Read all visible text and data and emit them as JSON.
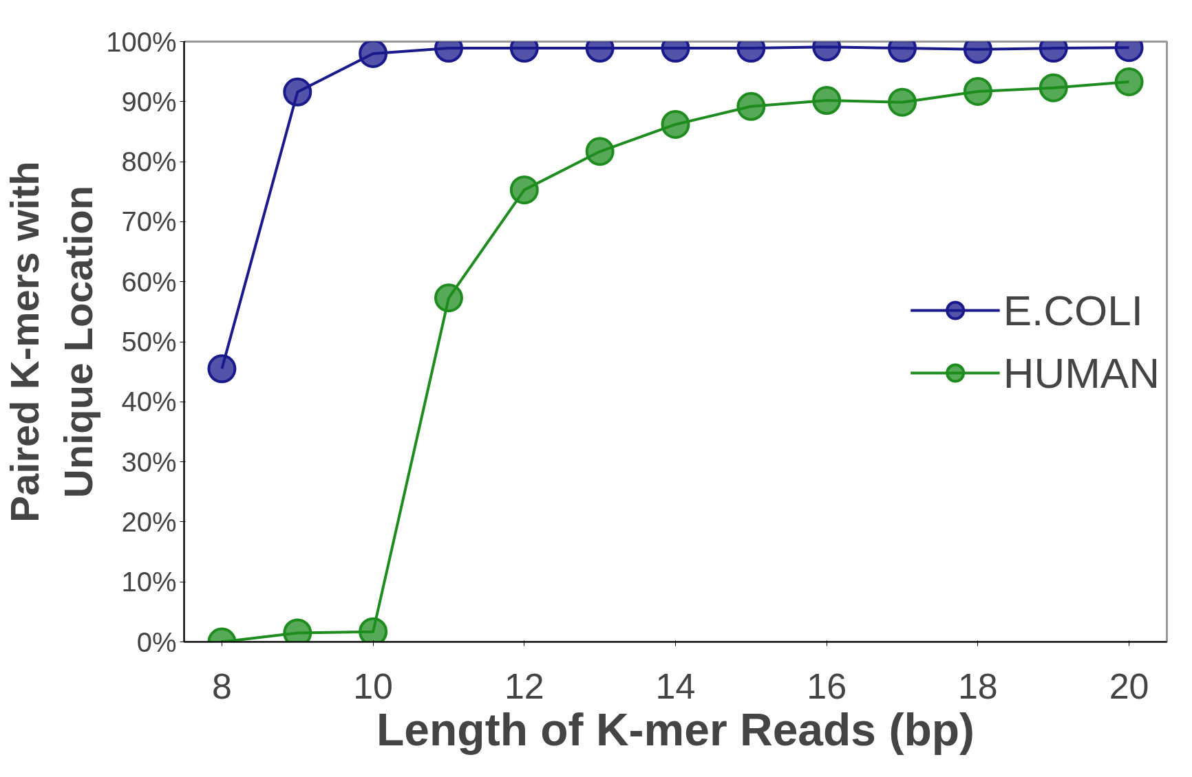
{
  "chart_data": {
    "type": "line",
    "xlabel": "Length of K-mer Reads (bp)",
    "ylabel": "Paired K-mers with\nUnique Location",
    "categories": [
      "8",
      null,
      "10",
      null,
      "12",
      null,
      "14",
      null,
      "16",
      null,
      "18",
      null,
      "20"
    ],
    "series": [
      {
        "name": "E.COLI",
        "color": "#1a1a8c",
        "values": [
          45.5,
          91.6,
          98.0,
          98.9,
          98.9,
          98.9,
          98.9,
          98.9,
          99.1,
          98.9,
          98.7,
          98.9,
          99.0
        ]
      },
      {
        "name": "HUMAN",
        "color": "#1e8c1e",
        "values": [
          0,
          1.5,
          1.7,
          57.3,
          75.3,
          81.7,
          86.2,
          89.2,
          90.2,
          89.9,
          91.7,
          92.3,
          93.3
        ]
      }
    ],
    "ylim": [
      0,
      100
    ],
    "yticks": [
      {
        "value": 0,
        "label": "0%"
      },
      {
        "value": 10,
        "label": "10%"
      },
      {
        "value": 20,
        "label": "20%"
      },
      {
        "value": 30,
        "label": "30%"
      },
      {
        "value": 40,
        "label": "40%"
      },
      {
        "value": 50,
        "label": "50%"
      },
      {
        "value": 60,
        "label": "60%"
      },
      {
        "value": 70,
        "label": "70%"
      },
      {
        "value": 80,
        "label": "80%"
      },
      {
        "value": 90,
        "label": "90%"
      },
      {
        "value": 100,
        "label": "100%"
      }
    ],
    "marker": "circle",
    "legend": "right",
    "grid": false
  }
}
